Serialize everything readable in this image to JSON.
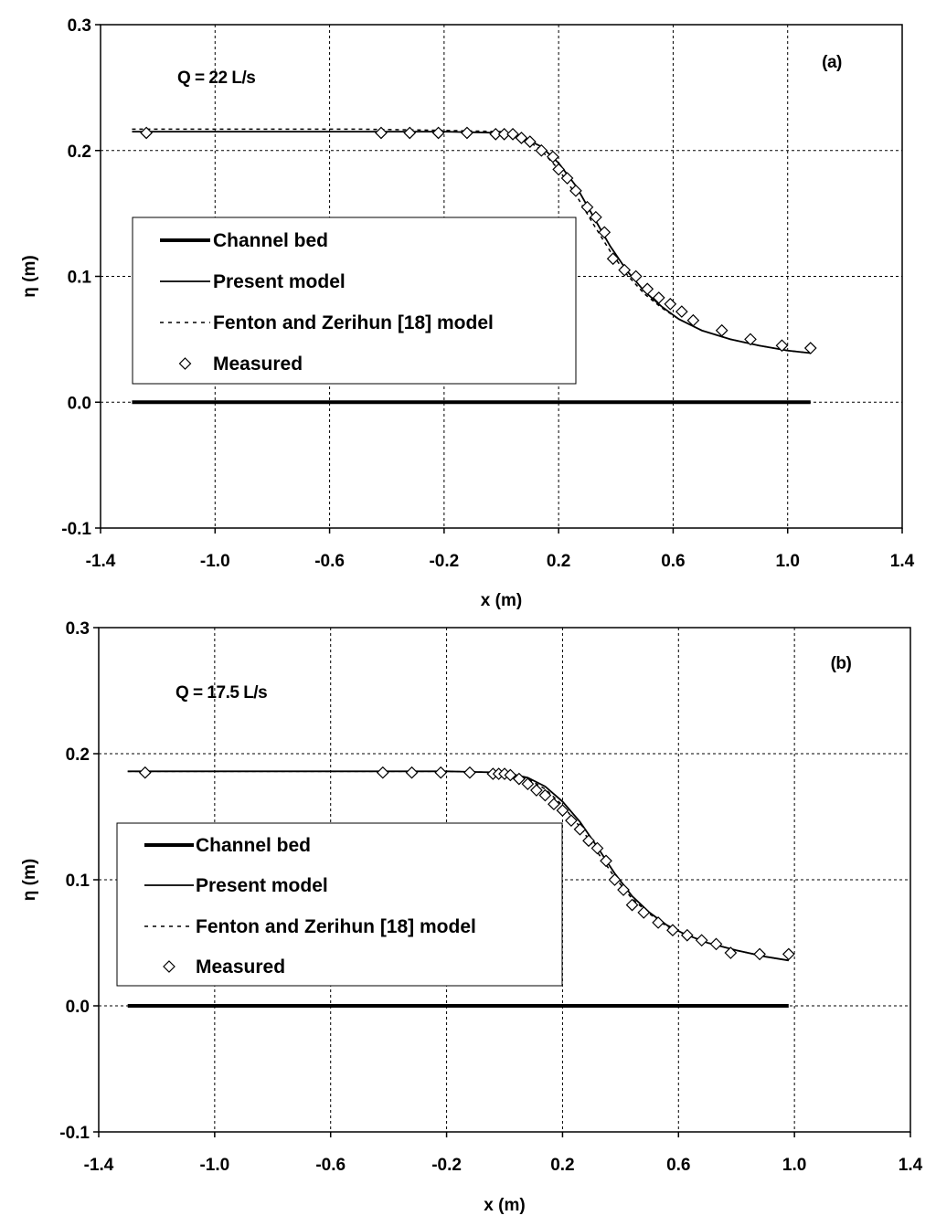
{
  "chart_data": [
    {
      "type": "line",
      "panel_label": "(a)",
      "annotation": "Q = 22 L/s",
      "xlabel": "x (m)",
      "ylabel": "η (m)",
      "xlim": [
        -1.4,
        1.4
      ],
      "ylim": [
        -0.1,
        0.3
      ],
      "xticks": [
        -1.4,
        -1.0,
        -0.6,
        -0.2,
        0.2,
        0.6,
        1.0,
        1.4
      ],
      "xtick_labels": [
        "-1.4",
        "-1.0",
        "-0.6",
        "-0.2",
        "0.2",
        "0.6",
        "1.0",
        "1.4"
      ],
      "yticks": [
        -0.1,
        0.0,
        0.1,
        0.2,
        0.3
      ],
      "ytick_labels": [
        "-0.1",
        "0.0",
        "0.1",
        "0.2",
        "0.3"
      ],
      "grid": true,
      "legend": [
        "Channel bed",
        "Present model",
        "Fenton and Zerihun [18] model",
        "Measured"
      ],
      "series": [
        {
          "name": "Channel bed",
          "style": "thick",
          "x": [
            -1.29,
            1.08
          ],
          "y": [
            0.0,
            0.0
          ]
        },
        {
          "name": "Present model",
          "style": "solid",
          "x": [
            -1.29,
            -0.9,
            -0.5,
            -0.2,
            0.0,
            0.08,
            0.14,
            0.2,
            0.26,
            0.32,
            0.38,
            0.44,
            0.5,
            0.56,
            0.62,
            0.7,
            0.8,
            0.9,
            1.0,
            1.08
          ],
          "y": [
            0.215,
            0.215,
            0.215,
            0.215,
            0.214,
            0.21,
            0.203,
            0.19,
            0.172,
            0.148,
            0.124,
            0.104,
            0.088,
            0.076,
            0.066,
            0.057,
            0.05,
            0.045,
            0.041,
            0.039
          ]
        },
        {
          "name": "Fenton and Zerihun [18] model",
          "style": "dashed",
          "x": [
            -1.29,
            -0.9,
            -0.5,
            -0.2,
            0.0,
            0.08,
            0.14,
            0.2,
            0.26,
            0.32,
            0.38,
            0.44,
            0.5,
            0.56,
            0.62,
            0.7,
            0.8,
            0.9,
            1.0,
            1.08
          ],
          "y": [
            0.217,
            0.217,
            0.217,
            0.216,
            0.215,
            0.21,
            0.2,
            0.185,
            0.165,
            0.142,
            0.12,
            0.101,
            0.086,
            0.075,
            0.066,
            0.057,
            0.05,
            0.045,
            0.041,
            0.039
          ]
        },
        {
          "name": "Measured",
          "style": "marker",
          "x": [
            -1.24,
            -0.42,
            -0.32,
            -0.22,
            -0.12,
            -0.02,
            0.01,
            0.04,
            0.07,
            0.1,
            0.14,
            0.18,
            0.2,
            0.23,
            0.26,
            0.3,
            0.33,
            0.36,
            0.39,
            0.43,
            0.47,
            0.51,
            0.55,
            0.59,
            0.63,
            0.67,
            0.77,
            0.87,
            0.98,
            1.08
          ],
          "y": [
            0.214,
            0.214,
            0.214,
            0.214,
            0.214,
            0.213,
            0.213,
            0.213,
            0.21,
            0.207,
            0.2,
            0.195,
            0.185,
            0.178,
            0.168,
            0.155,
            0.147,
            0.135,
            0.114,
            0.105,
            0.1,
            0.09,
            0.083,
            0.078,
            0.072,
            0.065,
            0.057,
            0.05,
            0.045,
            0.043
          ]
        }
      ]
    },
    {
      "type": "line",
      "panel_label": "(b)",
      "annotation": "Q = 17.5 L/s",
      "xlabel": "x (m)",
      "ylabel": "η (m)",
      "xlim": [
        -1.4,
        1.4
      ],
      "ylim": [
        -0.1,
        0.3
      ],
      "xticks": [
        -1.4,
        -1.0,
        -0.6,
        -0.2,
        0.2,
        0.6,
        1.0,
        1.4
      ],
      "xtick_labels": [
        "-1.4",
        "-1.0",
        "-0.6",
        "-0.2",
        "0.2",
        "0.6",
        "1.0",
        "1.4"
      ],
      "yticks": [
        -0.1,
        0.0,
        0.1,
        0.2,
        0.3
      ],
      "ytick_labels": [
        "-0.1",
        "0.0",
        "0.1",
        "0.2",
        "0.3"
      ],
      "grid": true,
      "legend": [
        "Channel bed",
        "Present model",
        "Fenton and  Zerihun [18] model",
        "Measured"
      ],
      "series": [
        {
          "name": "Channel bed",
          "style": "thick",
          "x": [
            -1.3,
            0.98
          ],
          "y": [
            0.0,
            0.0
          ]
        },
        {
          "name": "Present model",
          "style": "solid",
          "x": [
            -1.3,
            -0.9,
            -0.5,
            -0.2,
            0.0,
            0.08,
            0.14,
            0.2,
            0.26,
            0.32,
            0.38,
            0.44,
            0.5,
            0.56,
            0.62,
            0.7,
            0.8,
            0.9,
            0.98
          ],
          "y": [
            0.186,
            0.186,
            0.186,
            0.186,
            0.185,
            0.181,
            0.174,
            0.162,
            0.146,
            0.126,
            0.105,
            0.087,
            0.074,
            0.064,
            0.057,
            0.05,
            0.044,
            0.039,
            0.036
          ]
        },
        {
          "name": "Fenton and  Zerihun [18] model",
          "style": "dashed",
          "x": [
            -1.3,
            -0.9,
            -0.5,
            -0.2,
            0.0,
            0.08,
            0.14,
            0.2,
            0.26,
            0.32,
            0.38,
            0.44,
            0.5,
            0.56,
            0.62,
            0.7,
            0.8,
            0.9,
            0.98
          ],
          "y": [
            0.186,
            0.186,
            0.186,
            0.186,
            0.185,
            0.18,
            0.172,
            0.159,
            0.142,
            0.122,
            0.102,
            0.085,
            0.073,
            0.063,
            0.057,
            0.05,
            0.044,
            0.039,
            0.036
          ]
        },
        {
          "name": "Measured",
          "style": "marker",
          "x": [
            -1.24,
            -0.42,
            -0.32,
            -0.22,
            -0.12,
            -0.04,
            -0.02,
            0.0,
            0.02,
            0.05,
            0.08,
            0.11,
            0.14,
            0.17,
            0.2,
            0.23,
            0.26,
            0.29,
            0.32,
            0.35,
            0.38,
            0.41,
            0.44,
            0.48,
            0.53,
            0.58,
            0.63,
            0.68,
            0.73,
            0.78,
            0.88,
            0.98
          ],
          "y": [
            0.185,
            0.185,
            0.185,
            0.185,
            0.185,
            0.184,
            0.184,
            0.184,
            0.183,
            0.18,
            0.176,
            0.171,
            0.167,
            0.16,
            0.155,
            0.147,
            0.14,
            0.131,
            0.125,
            0.115,
            0.1,
            0.092,
            0.08,
            0.074,
            0.066,
            0.06,
            0.056,
            0.052,
            0.049,
            0.042,
            0.041,
            0.041
          ]
        }
      ]
    }
  ]
}
